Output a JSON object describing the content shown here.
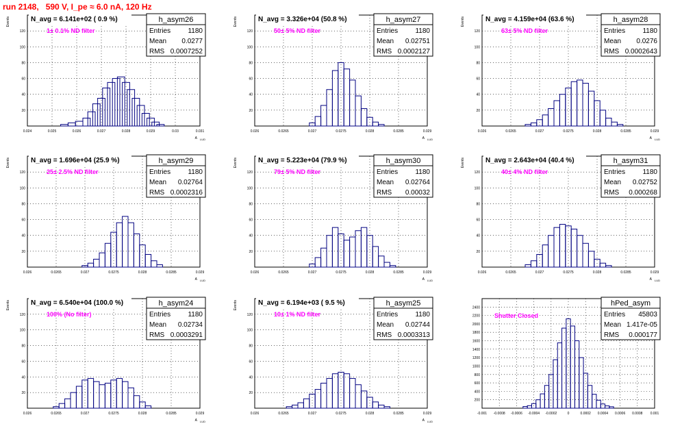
{
  "page_title": "run 2148,   590 V, I_pe ≈ 6.0 nA, 120 Hz",
  "chart_data": [
    {
      "type": "bar",
      "name": "h_asym26",
      "navg": "N_avg = 6.141e+02 ( 0.9 %)",
      "filter_label": "1± 0.1% ND filter",
      "stats": [
        [
          "Entries",
          "1180"
        ],
        [
          "Mean",
          "0.0277"
        ],
        [
          "RMS",
          "0.0007252"
        ]
      ],
      "ylabel": "Events",
      "xlabel": "A",
      "xlim": [
        0.024,
        0.031
      ],
      "ylim": [
        0,
        140
      ],
      "xticks": [
        "0.024",
        "0.025",
        "0.026",
        "0.027",
        "0.028",
        "0.029",
        "0.03",
        "0.031"
      ],
      "yticks": [
        "20",
        "40",
        "60",
        "80",
        "100",
        "120"
      ],
      "x": [
        0.0255,
        0.0258,
        0.0261,
        0.0264,
        0.0266,
        0.0268,
        0.027,
        0.0272,
        0.0274,
        0.0276,
        0.0278,
        0.028,
        0.0282,
        0.0284,
        0.0286,
        0.0288,
        0.029,
        0.0292,
        0.0294
      ],
      "values": [
        2,
        4,
        6,
        10,
        18,
        28,
        35,
        48,
        55,
        60,
        62,
        55,
        46,
        35,
        26,
        16,
        10,
        5,
        2
      ]
    },
    {
      "type": "bar",
      "name": "h_asym27",
      "navg": "N_avg = 3.326e+04 (50.8 %)",
      "filter_label": "50± 5% ND filter",
      "stats": [
        [
          "Entries",
          "1180"
        ],
        [
          "Mean",
          "0.02751"
        ],
        [
          "RMS",
          "0.0002127"
        ]
      ],
      "ylabel": "Events",
      "xlabel": "A",
      "xlim": [
        0.026,
        0.029
      ],
      "ylim": [
        0,
        140
      ],
      "xticks": [
        "0.026",
        "0.0265",
        "0.027",
        "0.0275",
        "0.028",
        "0.0285",
        "0.029"
      ],
      "yticks": [
        "20",
        "40",
        "60",
        "80",
        "100",
        "120"
      ],
      "x": [
        0.027,
        0.0271,
        0.0272,
        0.0273,
        0.0274,
        0.0275,
        0.0276,
        0.0277,
        0.0278,
        0.0279,
        0.028,
        0.0281,
        0.0282
      ],
      "values": [
        4,
        12,
        26,
        46,
        70,
        80,
        72,
        58,
        38,
        22,
        11,
        5,
        2
      ]
    },
    {
      "type": "bar",
      "name": "h_asym28",
      "navg": "N_avg = 4.159e+04 (63.6 %)",
      "filter_label": "63± 5% ND filter",
      "stats": [
        [
          "Entries",
          "1180"
        ],
        [
          "Mean",
          "0.0276"
        ],
        [
          "RMS",
          "0.0002643"
        ]
      ],
      "ylabel": "Events",
      "xlabel": "A",
      "xlim": [
        0.026,
        0.029
      ],
      "ylim": [
        0,
        140
      ],
      "xticks": [
        "0.026",
        "0.0265",
        "0.027",
        "0.0275",
        "0.028",
        "0.0285",
        "0.029"
      ],
      "yticks": [
        "20",
        "40",
        "60",
        "80",
        "100",
        "120"
      ],
      "x": [
        0.0268,
        0.0269,
        0.027,
        0.0271,
        0.0272,
        0.0273,
        0.0274,
        0.0275,
        0.0276,
        0.0277,
        0.0278,
        0.0279,
        0.028,
        0.0281,
        0.0282,
        0.0283,
        0.0284
      ],
      "values": [
        2,
        4,
        8,
        14,
        22,
        32,
        40,
        48,
        56,
        58,
        54,
        44,
        32,
        20,
        10,
        5,
        2
      ]
    },
    {
      "type": "bar",
      "name": "h_asym29",
      "navg": "N_avg = 1.696e+04 (25.9 %)",
      "filter_label": "25± 2.5% ND filter",
      "stats": [
        [
          "Entries",
          "1180"
        ],
        [
          "Mean",
          "0.02764"
        ],
        [
          "RMS",
          "0.0002316"
        ]
      ],
      "ylabel": "Events",
      "xlabel": "A",
      "xlim": [
        0.026,
        0.029
      ],
      "ylim": [
        0,
        140
      ],
      "xticks": [
        "0.026",
        "0.0265",
        "0.027",
        "0.0275",
        "0.028",
        "0.0285",
        "0.029"
      ],
      "yticks": [
        "20",
        "40",
        "60",
        "80",
        "100",
        "120"
      ],
      "x": [
        0.027,
        0.0271,
        0.0272,
        0.0273,
        0.0274,
        0.0275,
        0.0276,
        0.0277,
        0.0278,
        0.0279,
        0.028,
        0.0281,
        0.0282,
        0.0283
      ],
      "values": [
        2,
        5,
        10,
        18,
        30,
        44,
        56,
        64,
        56,
        42,
        28,
        16,
        8,
        3
      ]
    },
    {
      "type": "bar",
      "name": "h_asym30",
      "navg": "N_avg = 5.223e+04 (79.9 %)",
      "filter_label": "79± 5% ND filter",
      "stats": [
        [
          "Entries",
          "1180"
        ],
        [
          "Mean",
          "0.02764"
        ],
        [
          "RMS",
          "0.00032"
        ]
      ],
      "ylabel": "Events",
      "xlabel": "A",
      "xlim": [
        0.026,
        0.029
      ],
      "ylim": [
        0,
        140
      ],
      "xticks": [
        "0.026",
        "0.0265",
        "0.027",
        "0.0275",
        "0.028",
        "0.0285",
        "0.029"
      ],
      "yticks": [
        "20",
        "40",
        "60",
        "80",
        "100",
        "120"
      ],
      "x": [
        0.027,
        0.0271,
        0.0272,
        0.0273,
        0.0274,
        0.0275,
        0.0276,
        0.0277,
        0.0278,
        0.0279,
        0.028,
        0.0281,
        0.0282,
        0.0283,
        0.0284
      ],
      "values": [
        4,
        12,
        24,
        40,
        50,
        42,
        34,
        38,
        46,
        50,
        40,
        26,
        14,
        6,
        2
      ]
    },
    {
      "type": "bar",
      "name": "h_asym31",
      "navg": "N_avg = 2.643e+04 (40.4 %)",
      "filter_label": "40± 4% ND filter",
      "stats": [
        [
          "Entries",
          "1180"
        ],
        [
          "Mean",
          "0.02752"
        ],
        [
          "RMS",
          "0.000268"
        ]
      ],
      "ylabel": "Events",
      "xlabel": "A",
      "xlim": [
        0.026,
        0.029
      ],
      "ylim": [
        0,
        140
      ],
      "xticks": [
        "0.026",
        "0.0265",
        "0.027",
        "0.0275",
        "0.028",
        "0.0285",
        "0.029"
      ],
      "yticks": [
        "20",
        "40",
        "60",
        "80",
        "100",
        "120"
      ],
      "x": [
        0.0268,
        0.0269,
        0.027,
        0.0271,
        0.0272,
        0.0273,
        0.0274,
        0.0275,
        0.0276,
        0.0277,
        0.0278,
        0.0279,
        0.028,
        0.0281,
        0.0282
      ],
      "values": [
        3,
        8,
        16,
        28,
        40,
        50,
        54,
        52,
        48,
        40,
        30,
        20,
        10,
        5,
        2
      ]
    },
    {
      "type": "bar",
      "name": "h_asym24",
      "navg": "N_avg = 6.540e+04 (100.0 %)",
      "filter_label": "100% (No filter)",
      "stats": [
        [
          "Entries",
          "1180"
        ],
        [
          "Mean",
          "0.02734"
        ],
        [
          "RMS",
          "0.0003291"
        ]
      ],
      "ylabel": "Events",
      "xlabel": "A",
      "xlim": [
        0.026,
        0.029
      ],
      "ylim": [
        0,
        140
      ],
      "xticks": [
        "0.026",
        "0.0265",
        "0.027",
        "0.0275",
        "0.028",
        "0.0285",
        "0.029"
      ],
      "yticks": [
        "20",
        "40",
        "60",
        "80",
        "100",
        "120"
      ],
      "x": [
        0.0265,
        0.0266,
        0.0267,
        0.0268,
        0.0269,
        0.027,
        0.0271,
        0.0272,
        0.0273,
        0.0274,
        0.0275,
        0.0276,
        0.0277,
        0.0278,
        0.0279,
        0.028,
        0.0281
      ],
      "values": [
        2,
        6,
        12,
        20,
        28,
        36,
        38,
        34,
        30,
        32,
        36,
        38,
        34,
        26,
        16,
        8,
        3
      ]
    },
    {
      "type": "bar",
      "name": "h_asym25",
      "navg": "N_avg = 6.194e+03 ( 9.5 %)",
      "filter_label": "10± 1% ND filter",
      "stats": [
        [
          "Entries",
          "1180"
        ],
        [
          "Mean",
          "0.02744"
        ],
        [
          "RMS",
          "0.0003313"
        ]
      ],
      "ylabel": "Events",
      "xlabel": "A",
      "xlim": [
        0.026,
        0.029
      ],
      "ylim": [
        0,
        140
      ],
      "xticks": [
        "0.026",
        "0.0265",
        "0.027",
        "0.0275",
        "0.028",
        "0.0285",
        "0.029"
      ],
      "yticks": [
        "20",
        "40",
        "60",
        "80",
        "100",
        "120"
      ],
      "x": [
        0.0266,
        0.0267,
        0.0268,
        0.0269,
        0.027,
        0.0271,
        0.0272,
        0.0273,
        0.0274,
        0.0275,
        0.0276,
        0.0277,
        0.0278,
        0.0279,
        0.028,
        0.0281,
        0.0282,
        0.0283
      ],
      "values": [
        2,
        4,
        7,
        12,
        18,
        24,
        32,
        38,
        44,
        46,
        44,
        38,
        30,
        22,
        14,
        8,
        4,
        2
      ]
    },
    {
      "type": "bar",
      "name": "hPed_asym",
      "navg": "",
      "filter_label": "Shutter Closed",
      "stats": [
        [
          "Entries",
          "45803"
        ],
        [
          "Mean",
          "1.417e-05"
        ],
        [
          "RMS",
          "0.000177"
        ]
      ],
      "ylabel": "",
      "xlabel": "",
      "xlim": [
        -0.001,
        0.001
      ],
      "ylim": [
        0,
        2600
      ],
      "xticks": [
        "-0.001",
        "-0.0008",
        "-0.0006",
        "-0.0004",
        "-0.0002",
        "0",
        "0.0002",
        "0.0004",
        "0.0006",
        "0.0008",
        "0.001"
      ],
      "yticks": [
        "200",
        "400",
        "600",
        "800",
        "1000",
        "1200",
        "1400",
        "1600",
        "1800",
        "2000",
        "2200",
        "2400"
      ],
      "x": [
        -0.0005,
        -0.00045,
        -0.0004,
        -0.00035,
        -0.0003,
        -0.00025,
        -0.0002,
        -0.00015,
        -0.0001,
        -5e-05,
        0.0,
        5e-05,
        0.0001,
        0.00015,
        0.0002,
        0.00025,
        0.0003,
        0.00035,
        0.0004,
        0.00045,
        0.0005
      ],
      "values": [
        40,
        60,
        110,
        200,
        340,
        540,
        800,
        1150,
        1550,
        1900,
        2120,
        1950,
        1600,
        1200,
        830,
        540,
        330,
        190,
        100,
        55,
        35
      ]
    }
  ]
}
